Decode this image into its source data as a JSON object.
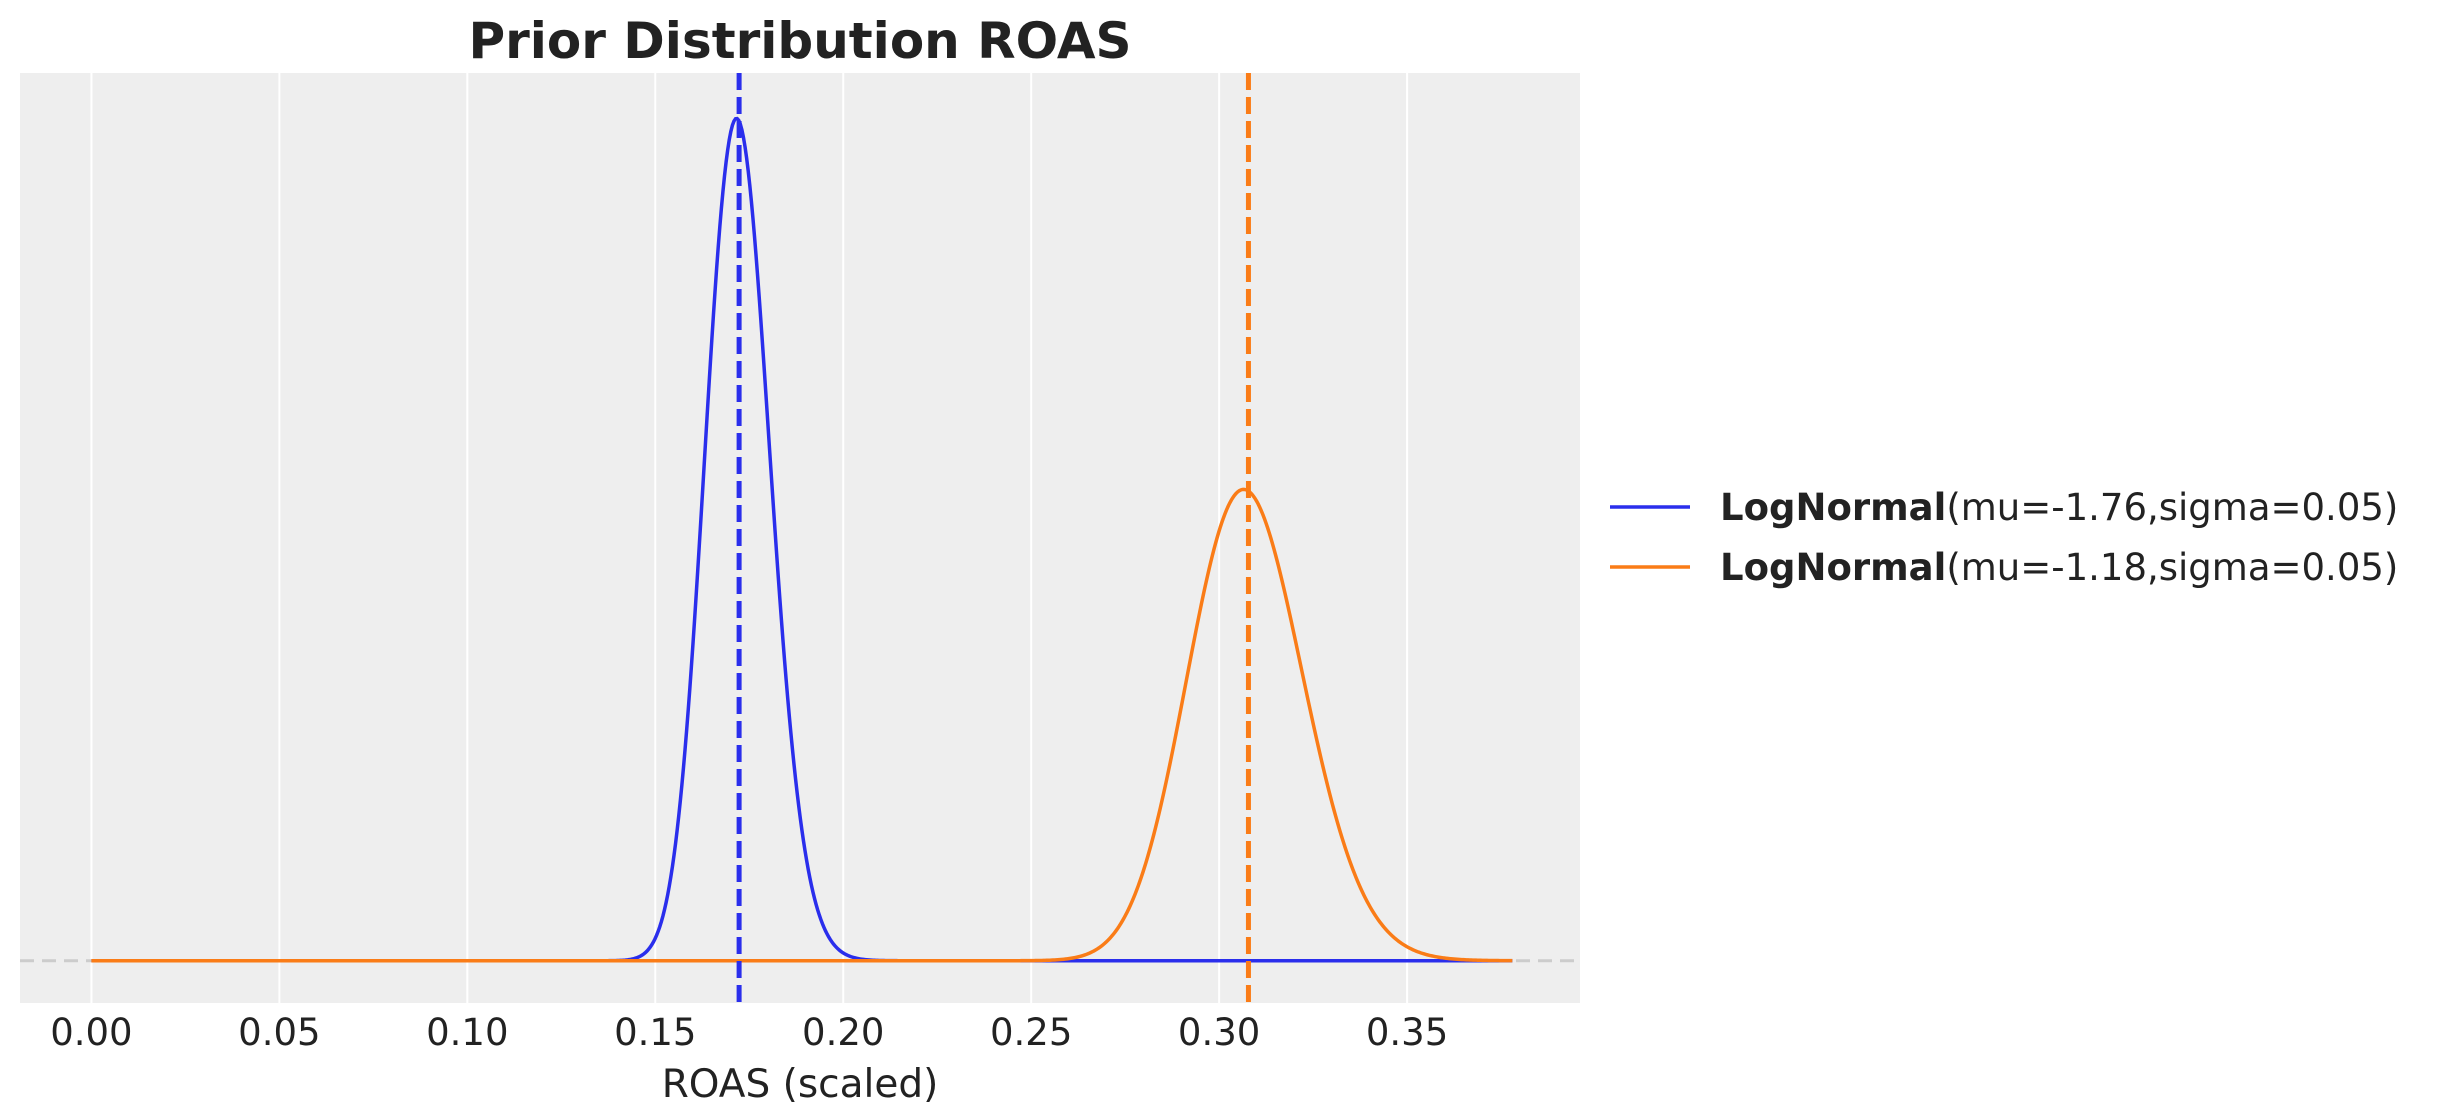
{
  "chart_data": {
    "type": "line",
    "title": "Prior Distribution ROAS",
    "xlabel": "ROAS (scaled)",
    "ylabel": "",
    "xlim": [
      -0.019,
      0.396
    ],
    "ylim": [
      -4.0,
      84.0
    ],
    "x_ticks": [
      0.0,
      0.05,
      0.1,
      0.15,
      0.2,
      0.25,
      0.3,
      0.35
    ],
    "x_tick_labels": [
      "0.00",
      "0.05",
      "0.10",
      "0.15",
      "0.20",
      "0.25",
      "0.30",
      "0.35"
    ],
    "grid": true,
    "legend_position": "right, outside plot",
    "baseline_y": 0,
    "x_range": [
      0.0,
      0.378
    ],
    "series": [
      {
        "name_bold": "LogNormal",
        "name_rest": "(mu=-1.76,sigma=0.05)",
        "color": "#2a2eec",
        "mu": -1.76,
        "sigma": 0.05,
        "mode": 0.1717,
        "peak_density": 79.7,
        "vline_x": 0.1723
      },
      {
        "name_bold": "LogNormal",
        "name_rest": "(mu=-1.18,sigma=0.05)",
        "color": "#fa7c17",
        "mu": -1.18,
        "sigma": 0.05,
        "mode": 0.3065,
        "peak_density": 44.6,
        "vline_x": 0.3078
      }
    ],
    "colors": {
      "plot_background": "#eeeeee",
      "grid": "#ffffff",
      "baseline": "#cccccc"
    }
  }
}
